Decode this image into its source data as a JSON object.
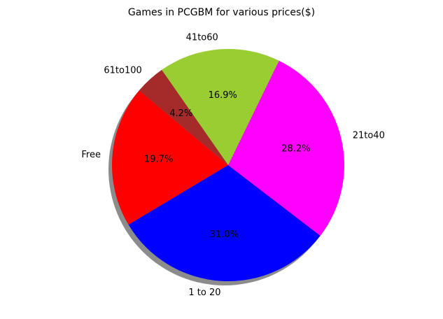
{
  "chart_data": {
    "type": "pie",
    "title": "Games in PCGBM for various prices($)",
    "categories": [
      "Free",
      "1 to 20",
      "$21 to $40",
      "$41 to $60",
      "$61 to $100"
    ],
    "category_labels": [
      "Free",
      "1 to 20",
      "21to40",
      "41to60",
      "61to100"
    ],
    "values": [
      19.7,
      31.0,
      28.2,
      16.9,
      4.2
    ],
    "percent_labels": [
      "19.7%",
      "31.0%",
      "28.2%",
      "16.9%",
      "4.2%"
    ],
    "colors": [
      "#ff0000",
      "#0000ff",
      "#ff00ff",
      "#9acd32",
      "#a52a2a"
    ],
    "start_angle_deg": 140,
    "direction": "counterclockwise",
    "shadow": true,
    "legend": "none"
  }
}
